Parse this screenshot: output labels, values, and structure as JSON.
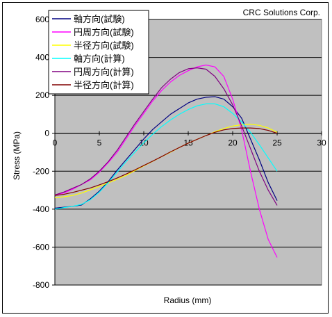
{
  "chart_data": {
    "type": "line",
    "watermark": "CRC Solutions Corp.",
    "xlabel": "Radius (mm)",
    "ylabel": "Stress (MPa)",
    "xlim": [
      0,
      30
    ],
    "ylim": [
      -800,
      600
    ],
    "x_ticks": [
      0,
      5,
      10,
      15,
      20,
      25,
      30
    ],
    "y_ticks": [
      -800,
      -600,
      -400,
      -200,
      0,
      200,
      400,
      600
    ],
    "grid": "horizontal",
    "plot_background": "#c0c0c0",
    "legend_position": "top-left",
    "series": [
      {
        "name": "軸方向(試験)",
        "color": "#000080",
        "x": [
          0,
          1,
          2,
          3,
          4,
          5,
          6,
          7,
          8,
          9,
          10,
          11,
          12,
          13,
          14,
          15,
          16,
          17,
          18,
          19,
          20,
          21,
          22,
          23,
          24,
          25
        ],
        "y": [
          -395,
          -390,
          -385,
          -378,
          -345,
          -305,
          -255,
          -195,
          -140,
          -85,
          -30,
          20,
          60,
          100,
          130,
          160,
          180,
          190,
          193,
          180,
          140,
          80,
          -30,
          -140,
          -260,
          -355
        ]
      },
      {
        "name": "円周方向(試験)",
        "color": "#ff00ff",
        "x": [
          0,
          1,
          2,
          3,
          4,
          5,
          6,
          7,
          8,
          9,
          10,
          11,
          12,
          13,
          14,
          15,
          16,
          17,
          18,
          19,
          20,
          21,
          22,
          23,
          24,
          25
        ],
        "y": [
          -325,
          -315,
          -295,
          -270,
          -245,
          -205,
          -155,
          -100,
          -30,
          40,
          105,
          170,
          225,
          270,
          305,
          330,
          350,
          360,
          350,
          300,
          180,
          20,
          -200,
          -400,
          -560,
          -655
        ]
      },
      {
        "name": "半径方向(試験)",
        "color": "#ffff00",
        "x": [
          0,
          1,
          2,
          3,
          4,
          5,
          6,
          7,
          8,
          9,
          10,
          11,
          12,
          13,
          14,
          15,
          16,
          17,
          18,
          19,
          20,
          21,
          22,
          23,
          24,
          25
        ],
        "y": [
          -340,
          -335,
          -328,
          -315,
          -298,
          -280,
          -262,
          -243,
          -222,
          -197,
          -172,
          -148,
          -124,
          -100,
          -75,
          -52,
          -32,
          -12,
          8,
          25,
          38,
          45,
          48,
          42,
          28,
          5
        ]
      },
      {
        "name": "軸方向(計算)",
        "color": "#00ffff",
        "x": [
          0,
          1,
          2,
          3,
          4,
          5,
          6,
          7,
          8,
          9,
          10,
          11,
          12,
          13,
          14,
          15,
          16,
          17,
          18,
          19,
          20,
          21,
          22,
          23,
          24,
          25
        ],
        "y": [
          -400,
          -392,
          -385,
          -375,
          -350,
          -310,
          -260,
          -205,
          -150,
          -100,
          -50,
          -5,
          35,
          70,
          100,
          125,
          145,
          155,
          155,
          140,
          105,
          60,
          5,
          -60,
          -130,
          -200
        ]
      },
      {
        "name": "円周方向(計算)",
        "color": "#800080",
        "x": [
          0,
          1,
          2,
          3,
          4,
          5,
          6,
          7,
          8,
          9,
          10,
          11,
          12,
          13,
          14,
          15,
          16,
          17,
          18,
          19,
          20,
          21,
          22,
          23,
          24,
          25
        ],
        "y": [
          -325,
          -310,
          -290,
          -270,
          -240,
          -200,
          -150,
          -90,
          -20,
          50,
          115,
          180,
          240,
          285,
          320,
          340,
          345,
          338,
          300,
          235,
          150,
          40,
          -80,
          -200,
          -300,
          -380
        ]
      },
      {
        "name": "半径方向(計算)",
        "color": "#800000",
        "x": [
          0,
          1,
          2,
          3,
          4,
          5,
          6,
          7,
          8,
          9,
          10,
          11,
          12,
          13,
          14,
          15,
          16,
          17,
          18,
          19,
          20,
          21,
          22,
          23,
          24,
          25
        ],
        "y": [
          -328,
          -322,
          -312,
          -300,
          -288,
          -272,
          -255,
          -236,
          -215,
          -193,
          -170,
          -147,
          -123,
          -98,
          -75,
          -52,
          -32,
          -12,
          5,
          18,
          25,
          28,
          28,
          25,
          15,
          0
        ]
      }
    ]
  }
}
